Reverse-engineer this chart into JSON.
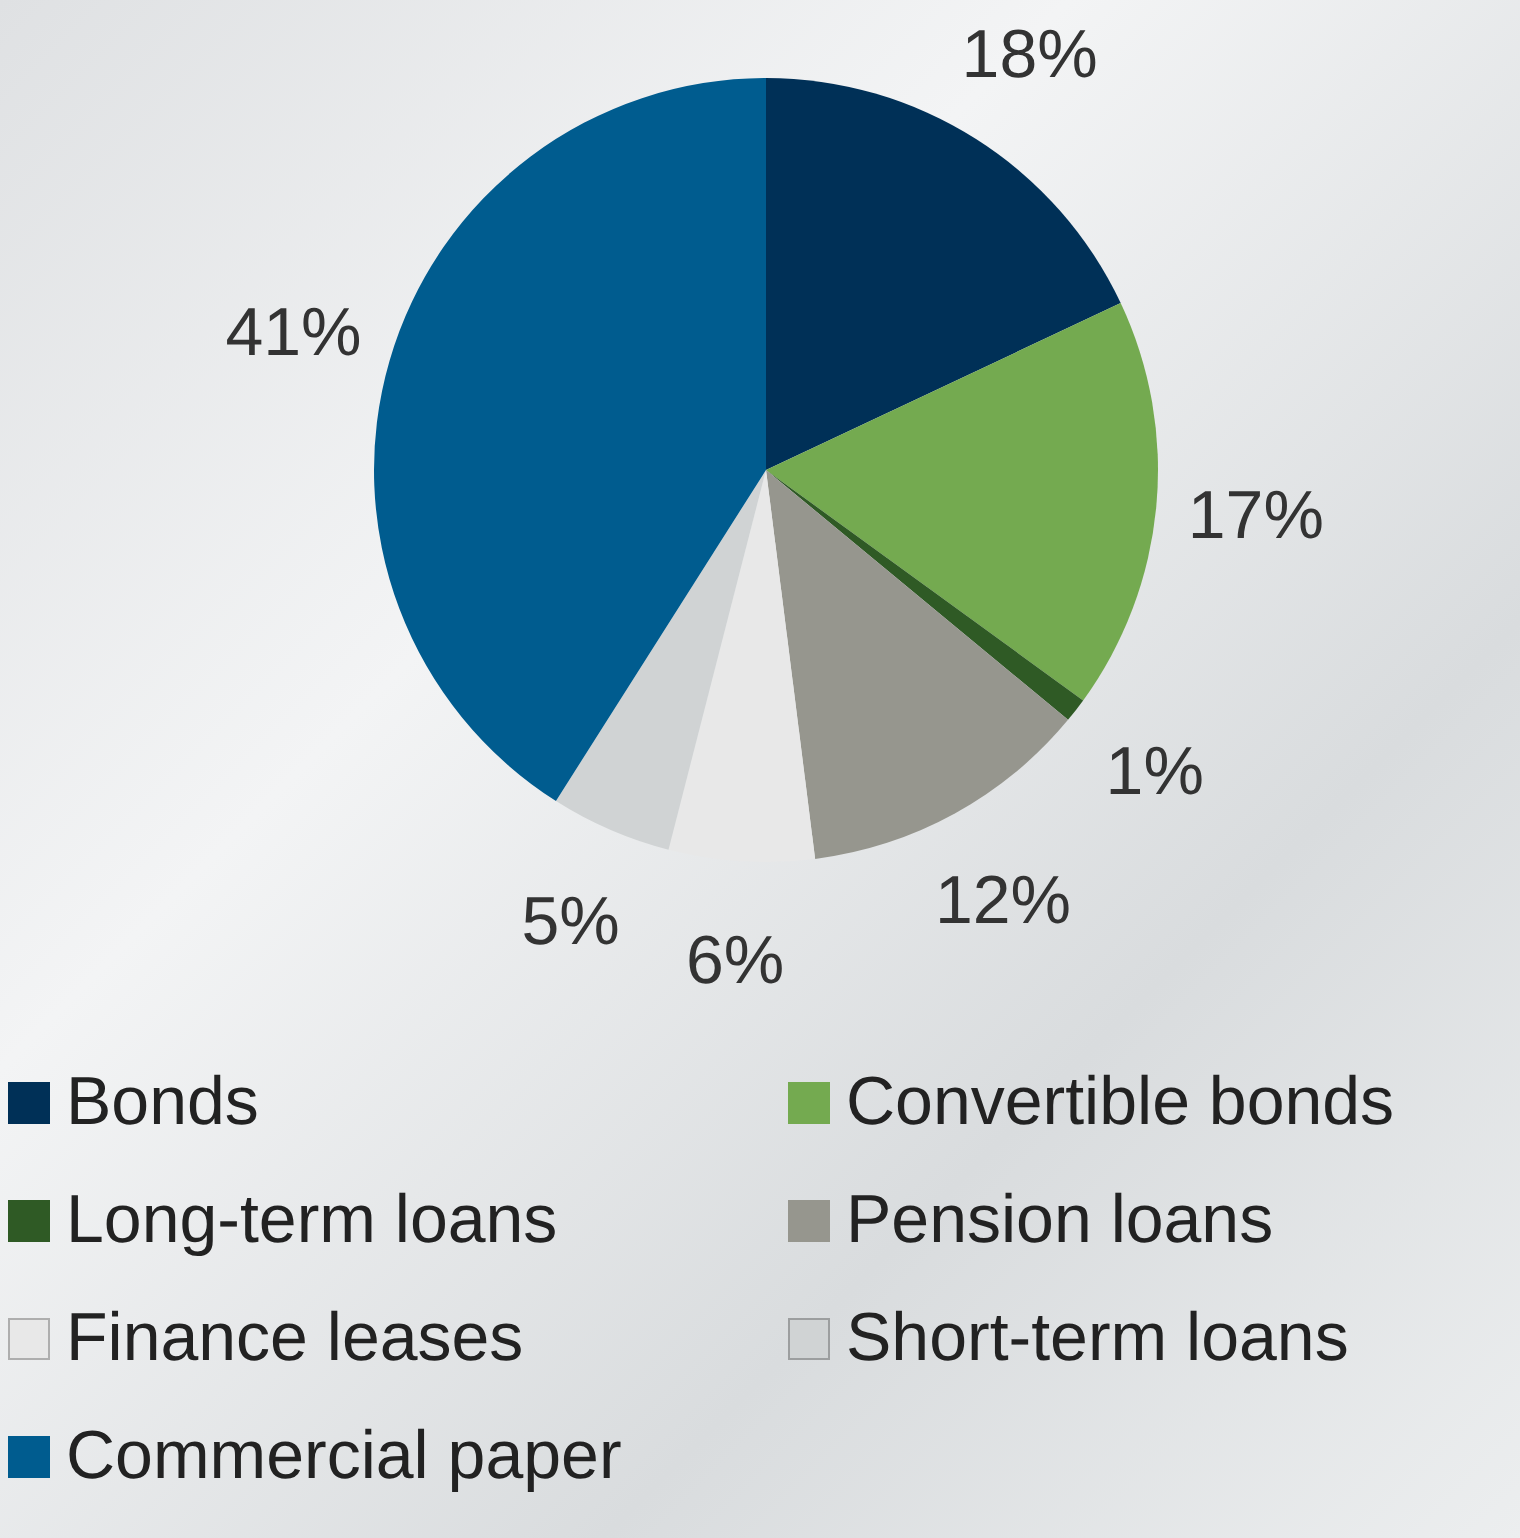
{
  "chart_data": {
    "type": "pie",
    "categories": [
      "Bonds",
      "Convertible bonds",
      "Long-term loans",
      "Pension loans",
      "Finance leases",
      "Short-term loans",
      "Commercial paper"
    ],
    "values": [
      18,
      17,
      1,
      12,
      6,
      5,
      41
    ],
    "colors": [
      "#003057",
      "#74aa50",
      "#2f5a25",
      "#96968e",
      "#e8e8e8",
      "#d0d3d4",
      "#005c8f"
    ],
    "value_labels": [
      "18%",
      "17%",
      "1%",
      "12%",
      "6%",
      "5%",
      "41%"
    ],
    "legend": "bottom"
  }
}
